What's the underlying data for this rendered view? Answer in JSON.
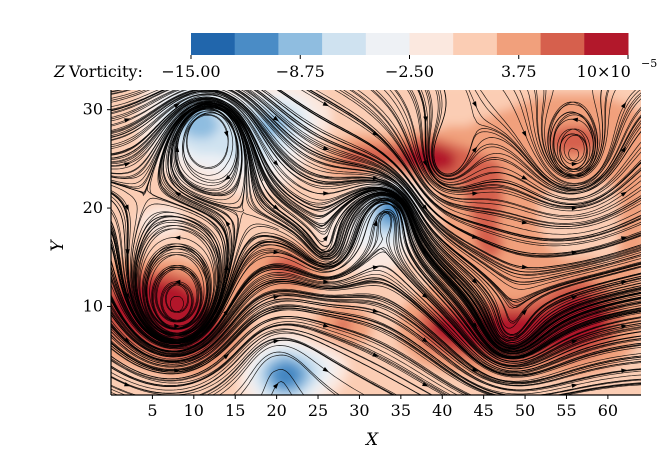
{
  "chart_data": {
    "type": "heatmap",
    "title": "",
    "xlabel": "X",
    "ylabel": "Y",
    "xlim": [
      0,
      64
    ],
    "ylim": [
      1,
      32
    ],
    "xticks": [
      5,
      10,
      15,
      20,
      25,
      30,
      35,
      40,
      45,
      50,
      55,
      60
    ],
    "yticks": [
      10,
      20,
      30
    ],
    "grid": false,
    "colorbar": {
      "label_var": "Z",
      "label_text": "Vorticity:",
      "placement": "top",
      "tick_labels": [
        "−15.00",
        "−8.75",
        "−2.50",
        "3.75",
        "10"
      ],
      "tick_values": [
        -15.0,
        -8.75,
        -2.5,
        3.75,
        10.0
      ],
      "multiplier": "×10",
      "multiplier_exponent": "−5",
      "levels": [
        -15.0,
        -12.5,
        -10.0,
        -7.5,
        -5.0,
        -2.5,
        0.0,
        2.5,
        5.0,
        7.5,
        10.0
      ],
      "colors": [
        "#2166ac",
        "#4a8cc6",
        "#8fbde0",
        "#cfe2f0",
        "#eef1f5",
        "#fbe8df",
        "#fbcdb4",
        "#f1a07c",
        "#d6604d",
        "#b2182b"
      ]
    },
    "overlay": "streamlines with arrows",
    "stream_color": "#000000"
  }
}
